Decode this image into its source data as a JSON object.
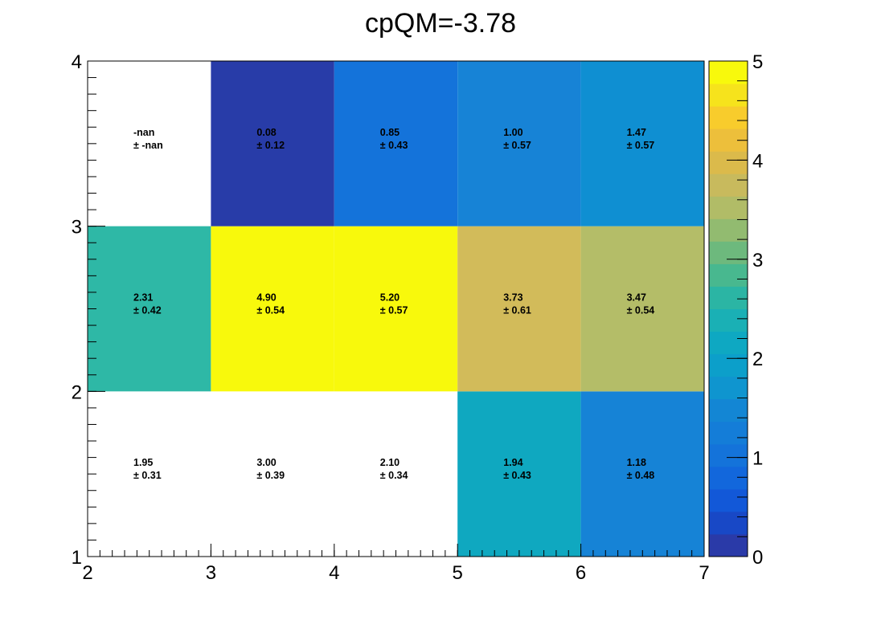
{
  "chart_data": {
    "type": "heatmap",
    "title": "cpQM=-3.78",
    "xlabel": "",
    "ylabel": "",
    "x_edges": [
      2,
      3,
      4,
      5,
      6,
      7
    ],
    "y_edges": [
      1,
      2,
      3,
      4
    ],
    "xlim": [
      2,
      7
    ],
    "ylim": [
      1,
      4
    ],
    "x_ticks": [
      "2",
      "3",
      "4",
      "5",
      "6",
      "7"
    ],
    "y_ticks": [
      "1",
      "2",
      "3",
      "4"
    ],
    "colorbar": {
      "min": 0,
      "max": 5,
      "ticks": [
        "0",
        "1",
        "2",
        "3",
        "4",
        "5"
      ]
    },
    "cells": [
      {
        "x": 2,
        "y": 1,
        "value": 1.95,
        "error": 0.31,
        "label": "1.95",
        "err_label": "± 0.31"
      },
      {
        "x": 3,
        "y": 1,
        "value": 3.0,
        "error": 0.39,
        "label": "3.00",
        "err_label": "± 0.39"
      },
      {
        "x": 4,
        "y": 1,
        "value": 2.1,
        "error": 0.34,
        "label": "2.10",
        "err_label": "± 0.34"
      },
      {
        "x": 5,
        "y": 1,
        "value": 1.94,
        "error": 0.43,
        "label": "1.94",
        "err_label": "± 0.43",
        "color": "#0fa8c0"
      },
      {
        "x": 6,
        "y": 1,
        "value": 1.18,
        "error": 0.48,
        "label": "1.18",
        "err_label": "± 0.48",
        "color": "#1683d6"
      },
      {
        "x": 2,
        "y": 2,
        "value": 2.31,
        "error": 0.42,
        "label": "2.31",
        "err_label": "± 0.42",
        "color": "#2eb8a6"
      },
      {
        "x": 3,
        "y": 2,
        "value": 4.9,
        "error": 0.54,
        "label": "4.90",
        "err_label": "± 0.54",
        "color": "#f8f90c"
      },
      {
        "x": 4,
        "y": 2,
        "value": 5.2,
        "error": 0.57,
        "label": "5.20",
        "err_label": "± 0.57",
        "color": "#f8f90c"
      },
      {
        "x": 5,
        "y": 2,
        "value": 3.73,
        "error": 0.61,
        "label": "3.73",
        "err_label": "± 0.61",
        "color": "#d2bb5a"
      },
      {
        "x": 6,
        "y": 2,
        "value": 3.47,
        "error": 0.54,
        "label": "3.47",
        "err_label": "± 0.54",
        "color": "#b4bd68"
      },
      {
        "x": 2,
        "y": 3,
        "value": null,
        "error": null,
        "label": "-nan",
        "err_label": "± -nan"
      },
      {
        "x": 3,
        "y": 3,
        "value": 0.08,
        "error": 0.12,
        "label": "0.08",
        "err_label": "± 0.12",
        "color": "#283ca8"
      },
      {
        "x": 4,
        "y": 3,
        "value": 0.85,
        "error": 0.43,
        "label": "0.85",
        "err_label": "± 0.43",
        "color": "#1473da"
      },
      {
        "x": 5,
        "y": 3,
        "value": 1.0,
        "error": 0.57,
        "label": "1.00",
        "err_label": "± 0.57",
        "color": "#1783d6"
      },
      {
        "x": 6,
        "y": 3,
        "value": 1.47,
        "error": 0.57,
        "label": "1.47",
        "err_label": "± 0.57",
        "color": "#0f8fd2"
      }
    ],
    "palette": [
      "#2a3aa8",
      "#1848c6",
      "#1258d8",
      "#1267dc",
      "#1473da",
      "#147dd8",
      "#1386d4",
      "#0f95cf",
      "#0c9fca",
      "#0ea8c2",
      "#1ab0b5",
      "#2bb5a4",
      "#48b88f",
      "#6db97d",
      "#92bb70",
      "#b1bc67",
      "#c8ba5d",
      "#dbba4b",
      "#edbf3b",
      "#f8cc2c",
      "#f6e31c",
      "#f8f90c"
    ]
  }
}
